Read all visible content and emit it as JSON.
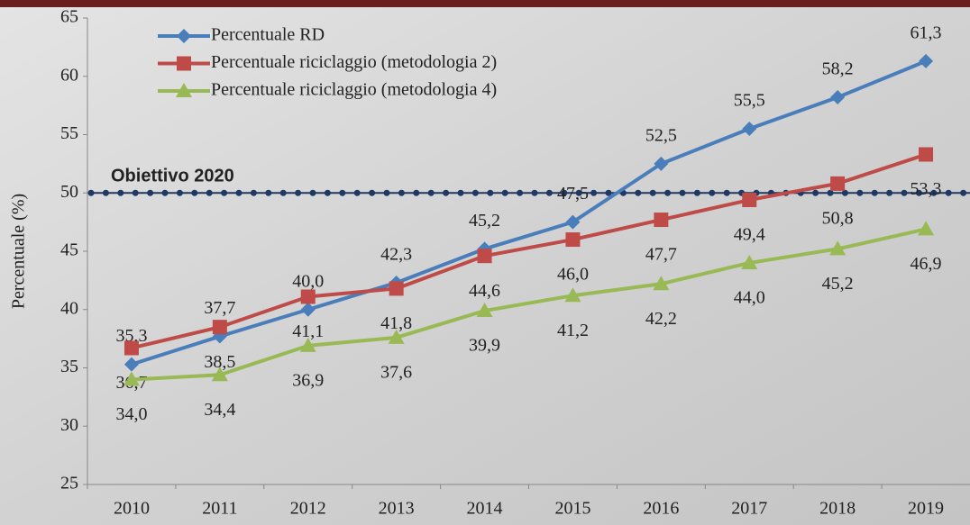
{
  "chart_data": {
    "type": "line",
    "y_label": "Percentuale (%)",
    "categories": [
      "2010",
      "2011",
      "2012",
      "2013",
      "2014",
      "2015",
      "2016",
      "2017",
      "2018",
      "2019"
    ],
    "series": [
      {
        "name": "Percentuale RD",
        "color": "#4a7ebb",
        "marker": "diamond",
        "values": [
          35.3,
          37.7,
          40.0,
          42.3,
          45.2,
          47.5,
          52.5,
          55.5,
          58.2,
          61.3
        ],
        "value_labels": [
          "35,3",
          "37,7",
          "40,0",
          "42,3",
          "45,2",
          "47,5",
          "52,5",
          "55,5",
          "58,2",
          "61,3"
        ]
      },
      {
        "name": "Percentuale riciclaggio (metodologia 2)",
        "color": "#be4b48",
        "marker": "square",
        "values": [
          36.7,
          38.5,
          41.1,
          41.8,
          44.6,
          46.0,
          47.7,
          49.4,
          50.8,
          53.3
        ],
        "value_labels": [
          "36,7",
          "38,5",
          "41,1",
          "41,8",
          "44,6",
          "46,0",
          "47,7",
          "49,4",
          "50,8",
          "53,3"
        ]
      },
      {
        "name": "Percentuale riciclaggio (metodologia 4)",
        "color": "#98b954",
        "marker": "triangle",
        "values": [
          34.0,
          34.4,
          36.9,
          37.6,
          39.9,
          41.2,
          42.2,
          44.0,
          45.2,
          46.9
        ],
        "value_labels": [
          "34,0",
          "34,4",
          "36,9",
          "37,6",
          "39,9",
          "41,2",
          "42,2",
          "44,0",
          "45,2",
          "46,9"
        ]
      }
    ],
    "target": {
      "label": "Obiettivo 2020",
      "value": 50,
      "color": "#1f3864"
    },
    "ylim": [
      25,
      65
    ],
    "yticks": [
      25,
      30,
      35,
      40,
      45,
      50,
      55,
      60,
      65
    ],
    "legend": "top-left",
    "grid": false
  }
}
